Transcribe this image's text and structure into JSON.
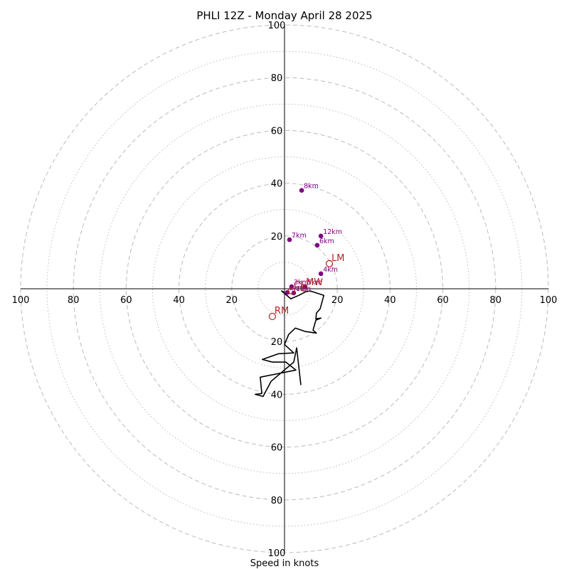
{
  "chart_data": {
    "type": "hodograph",
    "title": "PHLI 12Z - Monday April 28 2025",
    "xlabel": "Speed in knots",
    "units": "kt",
    "range": [
      -100,
      100
    ],
    "ring_labels": [
      "100",
      "80",
      "60",
      "40",
      "20",
      "20",
      "40",
      "60",
      "80",
      "100"
    ],
    "ring_values": [
      10,
      20,
      30,
      40,
      50,
      60,
      70,
      80,
      90,
      100
    ],
    "labeled_ring_values": [
      20,
      40,
      60,
      80,
      100
    ],
    "grid": true,
    "wind_trace": {
      "u": [
        0.0,
        -1.1,
        2.4,
        5.4,
        8.1,
        9.7,
        14.9,
        13.5,
        12.1,
        11.9,
        13.8,
        11.9,
        10.8,
        12.1,
        7.9,
        4.1,
        1.6,
        0.0,
        3.5,
        -2.2,
        -8.4,
        -4.6,
        0.5,
        4.3,
        -9.2,
        -8.6,
        -11.1,
        -8.1,
        -5.1,
        3.5,
        4.6,
        6.2
      ],
      "v": [
        -1.4,
        -0.8,
        -3.8,
        -2.5,
        -1.1,
        -0.8,
        -2.5,
        -7.6,
        -9.2,
        -11.4,
        -11.1,
        -11.9,
        -15.7,
        -16.8,
        -16.2,
        -14.9,
        -17.3,
        -21.1,
        -24.3,
        -24.6,
        -26.8,
        -27.8,
        -27.8,
        -30.8,
        -33.5,
        -39.7,
        -40.0,
        -40.8,
        -35.1,
        -27.8,
        -22.4,
        -36.5
      ]
    },
    "height_markers": [
      {
        "label": "1km",
        "u": 3.5,
        "v": -1.6
      },
      {
        "label": "2km",
        "u": 1.1,
        "v": -1.4
      },
      {
        "label": "3km",
        "u": 2.7,
        "v": 0.8
      },
      {
        "label": "4km",
        "u": 13.8,
        "v": 5.7
      },
      {
        "label": "5km",
        "u": 7.8,
        "v": 0.8
      },
      {
        "label": "6km",
        "u": 12.4,
        "v": 16.5
      },
      {
        "label": "7km",
        "u": 1.9,
        "v": 18.6
      },
      {
        "label": "8km",
        "u": 6.5,
        "v": 37.3
      },
      {
        "label": "12km",
        "u": 13.8,
        "v": 20.0
      }
    ],
    "markers": [
      {
        "label": "LM",
        "u": 17.0,
        "v": 9.5
      },
      {
        "label": "RM",
        "u": -4.6,
        "v": -10.5
      },
      {
        "label": "MW",
        "u": 7.3,
        "v": 0.3
      },
      {
        "label": "CL",
        "u": 2.7,
        "v": -0.8
      }
    ],
    "colors": {
      "trace": "#000000",
      "height_markers": "#800080",
      "motion_markers": "#b22222",
      "grid": "#bbbbbb",
      "axes": "#000000"
    }
  }
}
